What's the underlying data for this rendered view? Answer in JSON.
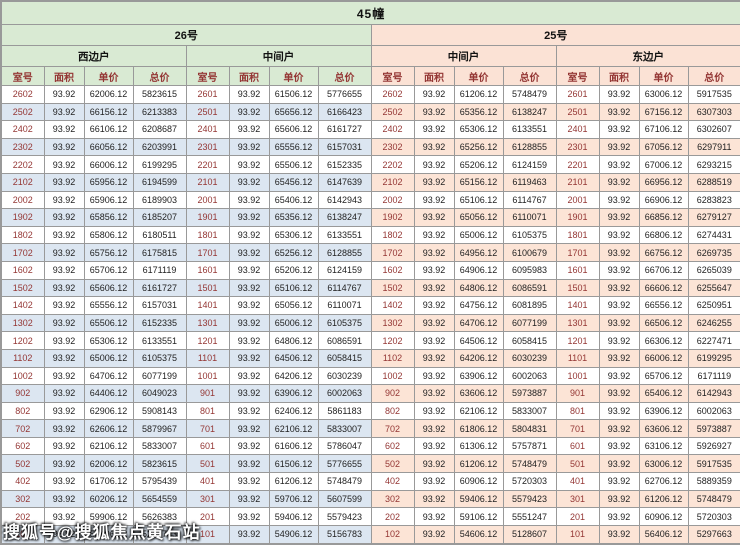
{
  "title": "45幢",
  "table": {
    "buildings": [
      {
        "label": "26号",
        "units": [
          "西边户",
          "中间户"
        ]
      },
      {
        "label": "25号",
        "units": [
          "中间户",
          "东边户"
        ]
      }
    ],
    "column_headers": [
      "室号",
      "面积",
      "单价",
      "总价"
    ],
    "rows": [
      [
        [
          "2602",
          "93.92",
          "62006.12",
          "5823615"
        ],
        [
          "2601",
          "93.92",
          "61506.12",
          "5776655"
        ],
        [
          "2602",
          "93.92",
          "61206.12",
          "5748479"
        ],
        [
          "2601",
          "93.92",
          "63006.12",
          "5917535"
        ]
      ],
      [
        [
          "2502",
          "93.92",
          "66156.12",
          "6213383"
        ],
        [
          "2501",
          "93.92",
          "65656.12",
          "6166423"
        ],
        [
          "2502",
          "93.92",
          "65356.12",
          "6138247"
        ],
        [
          "2501",
          "93.92",
          "67156.12",
          "6307303"
        ]
      ],
      [
        [
          "2402",
          "93.92",
          "66106.12",
          "6208687"
        ],
        [
          "2401",
          "93.92",
          "65606.12",
          "6161727"
        ],
        [
          "2402",
          "93.92",
          "65306.12",
          "6133551"
        ],
        [
          "2401",
          "93.92",
          "67106.12",
          "6302607"
        ]
      ],
      [
        [
          "2302",
          "93.92",
          "66056.12",
          "6203991"
        ],
        [
          "2301",
          "93.92",
          "65556.12",
          "6157031"
        ],
        [
          "2302",
          "93.92",
          "65256.12",
          "6128855"
        ],
        [
          "2301",
          "93.92",
          "67056.12",
          "6297911"
        ]
      ],
      [
        [
          "2202",
          "93.92",
          "66006.12",
          "6199295"
        ],
        [
          "2201",
          "93.92",
          "65506.12",
          "6152335"
        ],
        [
          "2202",
          "93.92",
          "65206.12",
          "6124159"
        ],
        [
          "2201",
          "93.92",
          "67006.12",
          "6293215"
        ]
      ],
      [
        [
          "2102",
          "93.92",
          "65956.12",
          "6194599"
        ],
        [
          "2101",
          "93.92",
          "65456.12",
          "6147639"
        ],
        [
          "2102",
          "93.92",
          "65156.12",
          "6119463"
        ],
        [
          "2101",
          "93.92",
          "66956.12",
          "6288519"
        ]
      ],
      [
        [
          "2002",
          "93.92",
          "65906.12",
          "6189903"
        ],
        [
          "2001",
          "93.92",
          "65406.12",
          "6142943"
        ],
        [
          "2002",
          "93.92",
          "65106.12",
          "6114767"
        ],
        [
          "2001",
          "93.92",
          "66906.12",
          "6283823"
        ]
      ],
      [
        [
          "1902",
          "93.92",
          "65856.12",
          "6185207"
        ],
        [
          "1901",
          "93.92",
          "65356.12",
          "6138247"
        ],
        [
          "1902",
          "93.92",
          "65056.12",
          "6110071"
        ],
        [
          "1901",
          "93.92",
          "66856.12",
          "6279127"
        ]
      ],
      [
        [
          "1802",
          "93.92",
          "65806.12",
          "6180511"
        ],
        [
          "1801",
          "93.92",
          "65306.12",
          "6133551"
        ],
        [
          "1802",
          "93.92",
          "65006.12",
          "6105375"
        ],
        [
          "1801",
          "93.92",
          "66806.12",
          "6274431"
        ]
      ],
      [
        [
          "1702",
          "93.92",
          "65756.12",
          "6175815"
        ],
        [
          "1701",
          "93.92",
          "65256.12",
          "6128855"
        ],
        [
          "1702",
          "93.92",
          "64956.12",
          "6100679"
        ],
        [
          "1701",
          "93.92",
          "66756.12",
          "6269735"
        ]
      ],
      [
        [
          "1602",
          "93.92",
          "65706.12",
          "6171119"
        ],
        [
          "1601",
          "93.92",
          "65206.12",
          "6124159"
        ],
        [
          "1602",
          "93.92",
          "64906.12",
          "6095983"
        ],
        [
          "1601",
          "93.92",
          "66706.12",
          "6265039"
        ]
      ],
      [
        [
          "1502",
          "93.92",
          "65606.12",
          "6161727"
        ],
        [
          "1501",
          "93.92",
          "65106.12",
          "6114767"
        ],
        [
          "1502",
          "93.92",
          "64806.12",
          "6086591"
        ],
        [
          "1501",
          "93.92",
          "66606.12",
          "6255647"
        ]
      ],
      [
        [
          "1402",
          "93.92",
          "65556.12",
          "6157031"
        ],
        [
          "1401",
          "93.92",
          "65056.12",
          "6110071"
        ],
        [
          "1402",
          "93.92",
          "64756.12",
          "6081895"
        ],
        [
          "1401",
          "93.92",
          "66556.12",
          "6250951"
        ]
      ],
      [
        [
          "1302",
          "93.92",
          "65506.12",
          "6152335"
        ],
        [
          "1301",
          "93.92",
          "65006.12",
          "6105375"
        ],
        [
          "1302",
          "93.92",
          "64706.12",
          "6077199"
        ],
        [
          "1301",
          "93.92",
          "66506.12",
          "6246255"
        ]
      ],
      [
        [
          "1202",
          "93.92",
          "65306.12",
          "6133551"
        ],
        [
          "1201",
          "93.92",
          "64806.12",
          "6086591"
        ],
        [
          "1202",
          "93.92",
          "64506.12",
          "6058415"
        ],
        [
          "1201",
          "93.92",
          "66306.12",
          "6227471"
        ]
      ],
      [
        [
          "1102",
          "93.92",
          "65006.12",
          "6105375"
        ],
        [
          "1101",
          "93.92",
          "64506.12",
          "6058415"
        ],
        [
          "1102",
          "93.92",
          "64206.12",
          "6030239"
        ],
        [
          "1101",
          "93.92",
          "66006.12",
          "6199295"
        ]
      ],
      [
        [
          "1002",
          "93.92",
          "64706.12",
          "6077199"
        ],
        [
          "1001",
          "93.92",
          "64206.12",
          "6030239"
        ],
        [
          "1002",
          "93.92",
          "63906.12",
          "6002063"
        ],
        [
          "1001",
          "93.92",
          "65706.12",
          "6171119"
        ]
      ],
      [
        [
          "902",
          "93.92",
          "64406.12",
          "6049023"
        ],
        [
          "901",
          "93.92",
          "63906.12",
          "6002063"
        ],
        [
          "902",
          "93.92",
          "63606.12",
          "5973887"
        ],
        [
          "901",
          "93.92",
          "65406.12",
          "6142943"
        ]
      ],
      [
        [
          "802",
          "93.92",
          "62906.12",
          "5908143"
        ],
        [
          "801",
          "93.92",
          "62406.12",
          "5861183"
        ],
        [
          "802",
          "93.92",
          "62106.12",
          "5833007"
        ],
        [
          "801",
          "93.92",
          "63906.12",
          "6002063"
        ]
      ],
      [
        [
          "702",
          "93.92",
          "62606.12",
          "5879967"
        ],
        [
          "701",
          "93.92",
          "62106.12",
          "5833007"
        ],
        [
          "702",
          "93.92",
          "61806.12",
          "5804831"
        ],
        [
          "701",
          "93.92",
          "63606.12",
          "5973887"
        ]
      ],
      [
        [
          "602",
          "93.92",
          "62106.12",
          "5833007"
        ],
        [
          "601",
          "93.92",
          "61606.12",
          "5786047"
        ],
        [
          "602",
          "93.92",
          "61306.12",
          "5757871"
        ],
        [
          "601",
          "93.92",
          "63106.12",
          "5926927"
        ]
      ],
      [
        [
          "502",
          "93.92",
          "62006.12",
          "5823615"
        ],
        [
          "501",
          "93.92",
          "61506.12",
          "5776655"
        ],
        [
          "502",
          "93.92",
          "61206.12",
          "5748479"
        ],
        [
          "501",
          "93.92",
          "63006.12",
          "5917535"
        ]
      ],
      [
        [
          "402",
          "93.92",
          "61706.12",
          "5795439"
        ],
        [
          "401",
          "93.92",
          "61206.12",
          "5748479"
        ],
        [
          "402",
          "93.92",
          "60906.12",
          "5720303"
        ],
        [
          "401",
          "93.92",
          "62706.12",
          "5889359"
        ]
      ],
      [
        [
          "302",
          "93.92",
          "60206.12",
          "5654559"
        ],
        [
          "301",
          "93.92",
          "59706.12",
          "5607599"
        ],
        [
          "302",
          "93.92",
          "59406.12",
          "5579423"
        ],
        [
          "301",
          "93.92",
          "61206.12",
          "5748479"
        ]
      ],
      [
        [
          "202",
          "93.92",
          "59906.12",
          "5626383"
        ],
        [
          "201",
          "93.92",
          "59406.12",
          "5579423"
        ],
        [
          "202",
          "93.92",
          "59106.12",
          "5551247"
        ],
        [
          "201",
          "93.92",
          "60906.12",
          "5720303"
        ]
      ],
      [
        [
          "102",
          "93.92",
          "55406.12",
          "5203743"
        ],
        [
          "101",
          "93.92",
          "54906.12",
          "5156783"
        ],
        [
          "102",
          "93.92",
          "54606.12",
          "5128607"
        ],
        [
          "101",
          "93.92",
          "56406.12",
          "5297663"
        ]
      ]
    ]
  },
  "watermark": {
    "text": "搜狐号@搜狐焦点黄石站"
  },
  "colors": {
    "green_header": "#d9ead3",
    "peach_header": "#fbe2d5",
    "stripe_blue": "#dce6f1",
    "stripe_peach": "#fce4d6",
    "header_text": "#943634",
    "room_text": "#943634",
    "border": "#999999",
    "watermark_text": "#ffffff"
  }
}
